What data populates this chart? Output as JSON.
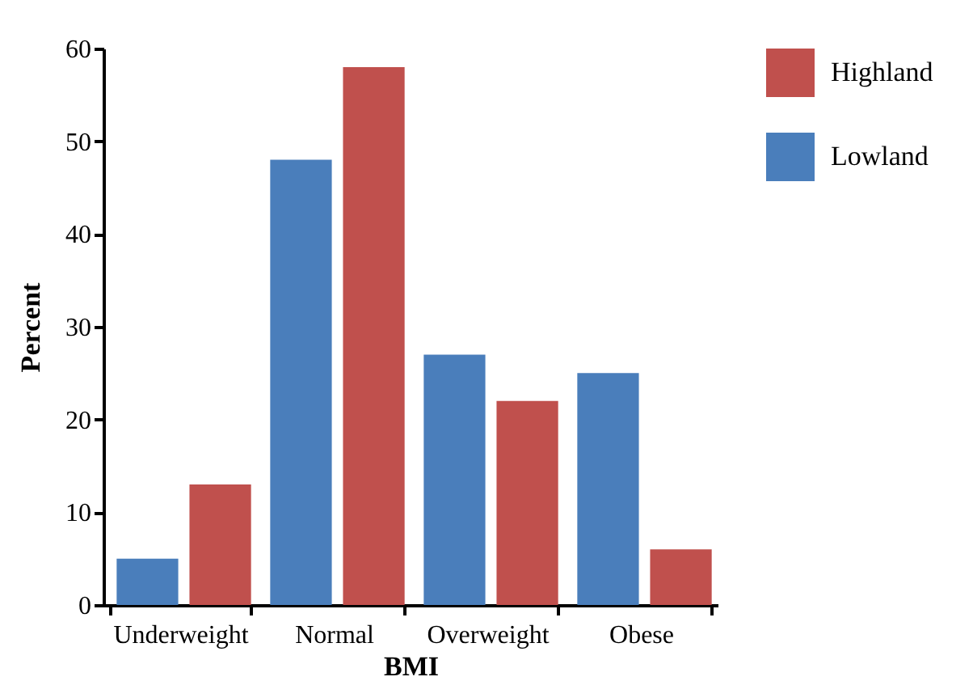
{
  "chart_data": {
    "type": "bar",
    "xlabel": "BMI",
    "ylabel": "Percent",
    "categories": [
      "Underweight",
      "Normal",
      "Overweight",
      "Obese"
    ],
    "series": [
      {
        "name": "Lowland",
        "color": "#4a7ebb",
        "values": [
          5,
          48,
          27,
          25
        ]
      },
      {
        "name": "Highland",
        "color": "#c0504d",
        "values": [
          13,
          58,
          22,
          6
        ]
      }
    ],
    "ylim": [
      0,
      60
    ],
    "yticks": [
      0,
      10,
      20,
      30,
      40,
      50,
      60
    ],
    "grid": false,
    "legend": "top right"
  }
}
